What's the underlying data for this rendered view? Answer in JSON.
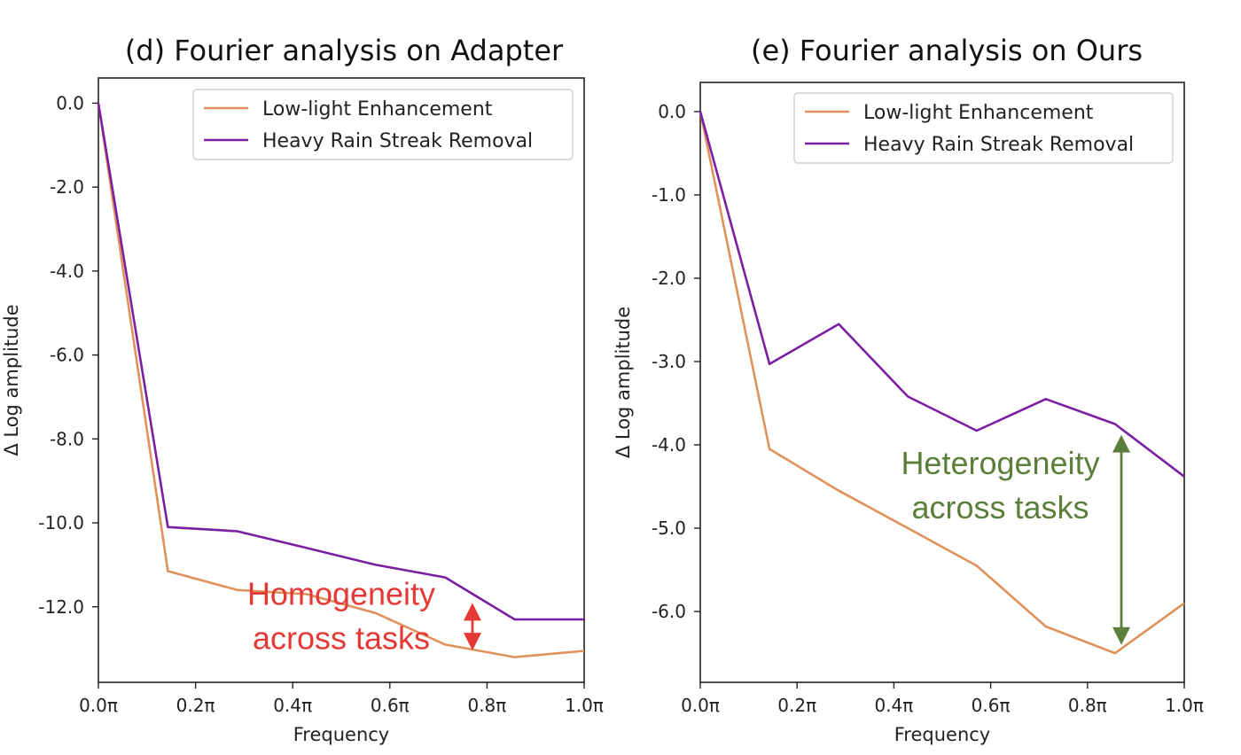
{
  "colors": {
    "low_light": "#E0925C",
    "heavy_rain": "#7B1FA2",
    "homogeneity": "#E53935",
    "heterogeneity": "#5B7F3A"
  },
  "chart_data": [
    {
      "type": "line",
      "title": "(d) Fourier analysis on Adapter",
      "xlabel": "Frequency",
      "ylabel": "Δ Log amplitude",
      "xlim": [
        0,
        1
      ],
      "ylim": [
        -13.8,
        0.6
      ],
      "xticks": [
        0,
        0.2,
        0.4,
        0.6,
        0.8,
        1.0
      ],
      "xtick_labels": [
        "0.0π",
        "0.2π",
        "0.4π",
        "0.6π",
        "0.8π",
        "1.0π"
      ],
      "yticks": [
        0,
        -2,
        -4,
        -6,
        -8,
        -10,
        -12
      ],
      "ytick_labels": [
        "0.0",
        "-2.0",
        "-4.0",
        "-6.0",
        "-8.0",
        "-10.0",
        "-12.0"
      ],
      "grid": false,
      "legend_position": "top-right",
      "x": [
        0,
        0.143,
        0.286,
        0.429,
        0.571,
        0.714,
        0.857,
        1.0
      ],
      "series": [
        {
          "name": "Low-light Enhancement",
          "color_key": "low_light",
          "values": [
            0.0,
            -11.15,
            -11.6,
            -11.7,
            -12.15,
            -12.9,
            -13.2,
            -13.05
          ]
        },
        {
          "name": "Heavy Rain Streak Removal",
          "color_key": "heavy_rain",
          "values": [
            0.0,
            -10.1,
            -10.2,
            -10.6,
            -11.0,
            -11.3,
            -12.3,
            -12.3
          ]
        }
      ],
      "annotation": {
        "lines": [
          "Homogeneity",
          "across tasks"
        ],
        "color_key": "homogeneity",
        "arrow_x": 0.77,
        "arrow_y_from": -11.95,
        "arrow_y_to": -13.0,
        "text_x": 0.5,
        "text_y": -11.95
      }
    },
    {
      "type": "line",
      "title": "(e) Fourier analysis on Ours",
      "xlabel": "Frequency",
      "ylabel": "Δ Log amplitude",
      "xlim": [
        0,
        1
      ],
      "ylim": [
        -6.85,
        0.35
      ],
      "xticks": [
        0,
        0.2,
        0.4,
        0.6,
        0.8,
        1.0
      ],
      "xtick_labels": [
        "0.0π",
        "0.2π",
        "0.4π",
        "0.6π",
        "0.8π",
        "1.0π"
      ],
      "yticks": [
        0,
        -1,
        -2,
        -3,
        -4,
        -5,
        -6
      ],
      "ytick_labels": [
        "0.0",
        "-1.0",
        "-2.0",
        "-3.0",
        "-4.0",
        "-5.0",
        "-6.0"
      ],
      "grid": false,
      "legend_position": "top-right",
      "x": [
        0,
        0.143,
        0.286,
        0.429,
        0.571,
        0.714,
        0.857,
        1.0
      ],
      "series": [
        {
          "name": "Low-light Enhancement",
          "color_key": "low_light",
          "values": [
            0.0,
            -4.05,
            -4.55,
            -5.0,
            -5.45,
            -6.18,
            -6.5,
            -5.9
          ]
        },
        {
          "name": "Heavy Rain Streak Removal",
          "color_key": "heavy_rain",
          "values": [
            0.0,
            -3.03,
            -2.55,
            -3.42,
            -3.83,
            -3.45,
            -3.75,
            -4.38
          ]
        }
      ],
      "annotation": {
        "lines": [
          "Heterogeneity",
          "across tasks"
        ],
        "color_key": "heterogeneity",
        "arrow_x": 0.87,
        "arrow_y_from": -3.9,
        "arrow_y_to": -6.38,
        "text_x": 0.62,
        "text_y": -4.35
      }
    }
  ]
}
